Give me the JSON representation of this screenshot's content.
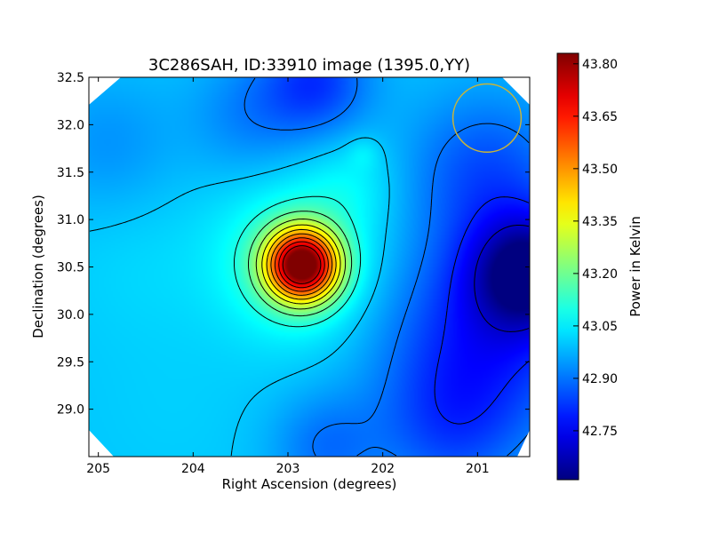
{
  "chart_data": {
    "type": "heatmap",
    "title": "3C286SAH, ID:33910 image (1395.0,YY)",
    "xlabel": "Right Ascension (degrees)",
    "ylabel": "Declination (degrees)",
    "xlim": [
      205.1,
      200.45
    ],
    "ylim": [
      28.5,
      32.5
    ],
    "x_ticks": [
      205,
      204,
      203,
      202,
      201
    ],
    "x_tick_labels": [
      "205",
      "204",
      "203",
      "202",
      "201"
    ],
    "y_ticks": [
      29.0,
      29.5,
      30.0,
      30.5,
      31.0,
      31.5,
      32.0,
      32.5
    ],
    "y_tick_labels": [
      "29.0",
      "29.5",
      "30.0",
      "30.5",
      "31.0",
      "31.5",
      "32.0",
      "32.5"
    ],
    "colormap": "jet",
    "colorbar": {
      "label": "Power in Kelvin",
      "range": [
        42.61,
        43.83
      ],
      "ticks": [
        42.75,
        42.9,
        43.05,
        43.2,
        43.35,
        43.5,
        43.65,
        43.8
      ],
      "tick_labels": [
        "42.75",
        "42.90",
        "43.05",
        "43.20",
        "43.35",
        "43.50",
        "43.65",
        "43.80"
      ]
    },
    "peak": {
      "ra": 202.85,
      "dec": 30.52,
      "value": 43.82
    },
    "secondary_peak": {
      "ra": 202.2,
      "dec": 31.7,
      "value": 43.09
    },
    "minimum": {
      "ra": 200.45,
      "dec": 30.45,
      "value": 42.61
    },
    "background_level": 43.0,
    "contour_levels": [
      42.7,
      42.8,
      42.9,
      43.0,
      43.1,
      43.18,
      43.26,
      43.34,
      43.42,
      43.5,
      43.58,
      43.66,
      43.74
    ],
    "beam_marker": {
      "ra": 200.9,
      "dec": 32.07,
      "radius_deg": 0.36,
      "color": "#c8b43a"
    },
    "grid": false
  }
}
